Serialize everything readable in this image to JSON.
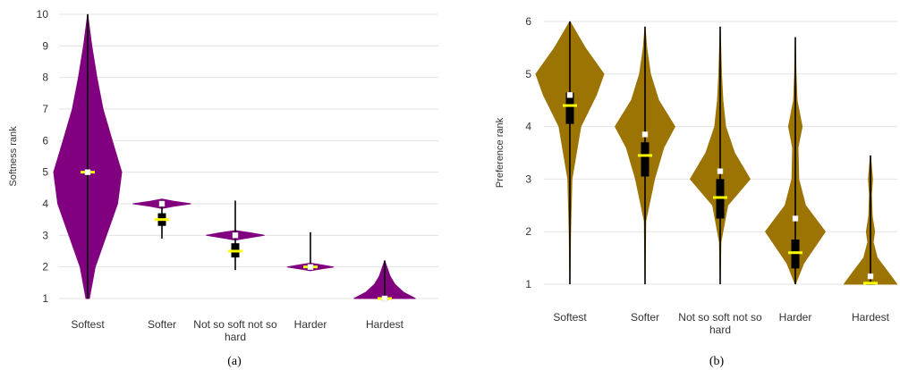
{
  "chart_data": [
    {
      "type": "violin",
      "panel_label": "(a)",
      "ylabel": "Softness rank",
      "ylim": [
        1,
        10
      ],
      "yticks": [
        "1",
        "2",
        "3",
        "4",
        "5",
        "6",
        "7",
        "8",
        "9",
        "10"
      ],
      "grid": true,
      "categories": [
        {
          "lines": [
            "Softest"
          ]
        },
        {
          "lines": [
            "Softer"
          ]
        },
        {
          "lines": [
            "Not so soft not so",
            "hard"
          ]
        },
        {
          "lines": [
            "Harder"
          ]
        },
        {
          "lines": [
            "Hardest"
          ]
        }
      ],
      "color": "#800080",
      "violins": [
        {
          "min": 1,
          "max": 10,
          "mode": 5,
          "q1": 4.97,
          "q3": 5.03,
          "median": 5,
          "mean": 5,
          "profile": [
            [
              1,
              0.05
            ],
            [
              2,
              0.22
            ],
            [
              3,
              0.55
            ],
            [
              4,
              0.88
            ],
            [
              5,
              1.0
            ],
            [
              6,
              0.72
            ],
            [
              7,
              0.45
            ],
            [
              8,
              0.27
            ],
            [
              9,
              0.12
            ],
            [
              10,
              0.0
            ]
          ]
        },
        {
          "min": 2.9,
          "max": 4.1,
          "mode": 4,
          "q1": 3.3,
          "q3": 3.7,
          "median": 3.5,
          "mean": 4.0,
          "profile": [
            [
              3.85,
              0.0
            ],
            [
              3.92,
              0.35
            ],
            [
              4.0,
              0.85
            ],
            [
              4.08,
              0.35
            ],
            [
              4.15,
              0.0
            ]
          ]
        },
        {
          "min": 1.9,
          "max": 4.1,
          "mode": 3,
          "q1": 2.3,
          "q3": 2.75,
          "median": 2.5,
          "mean": 3.0,
          "profile": [
            [
              2.85,
              0.0
            ],
            [
              2.93,
              0.45
            ],
            [
              3.0,
              0.85
            ],
            [
              3.08,
              0.45
            ],
            [
              3.15,
              0.0
            ]
          ]
        },
        {
          "min": 1.9,
          "max": 3.1,
          "mode": 2,
          "q1": 1.97,
          "q3": 2.03,
          "median": 2.0,
          "mean": 2.0,
          "profile": [
            [
              1.88,
              0.0
            ],
            [
              1.95,
              0.4
            ],
            [
              2.0,
              0.68
            ],
            [
              2.05,
              0.4
            ],
            [
              2.12,
              0.0
            ]
          ]
        },
        {
          "min": 1,
          "max": 2.2,
          "mode": 1,
          "q1": 1.0,
          "q3": 1.04,
          "median": 1.0,
          "mean": 1.0,
          "profile": [
            [
              1.0,
              0.9
            ],
            [
              1.2,
              0.55
            ],
            [
              1.45,
              0.3
            ],
            [
              1.7,
              0.16
            ],
            [
              1.95,
              0.08
            ],
            [
              2.2,
              0.0
            ]
          ]
        }
      ]
    },
    {
      "type": "violin",
      "panel_label": "(b)",
      "ylabel": "Preference rank",
      "ylim": [
        1,
        6
      ],
      "yticks": [
        "1",
        "2",
        "3",
        "4",
        "5",
        "6"
      ],
      "grid": true,
      "categories": [
        {
          "lines": [
            "Softest"
          ]
        },
        {
          "lines": [
            "Softer"
          ]
        },
        {
          "lines": [
            "Not so soft not so",
            "hard"
          ]
        },
        {
          "lines": [
            "Harder"
          ]
        },
        {
          "lines": [
            "Hardest"
          ]
        }
      ],
      "color": "#9c7404",
      "violins": [
        {
          "min": 1,
          "max": 6,
          "mode": 5,
          "q1": 4.05,
          "q3": 4.65,
          "median": 4.4,
          "mean": 4.6,
          "profile": [
            [
              1,
              0.0
            ],
            [
              2,
              0.02
            ],
            [
              3,
              0.06
            ],
            [
              4,
              0.32
            ],
            [
              4.6,
              0.78
            ],
            [
              5,
              1.0
            ],
            [
              5.5,
              0.45
            ],
            [
              6,
              0.0
            ]
          ]
        },
        {
          "min": 1,
          "max": 5.9,
          "mode": 4,
          "q1": 3.05,
          "q3": 3.7,
          "median": 3.45,
          "mean": 3.85,
          "profile": [
            [
              1,
              0.0
            ],
            [
              2.2,
              0.02
            ],
            [
              3,
              0.28
            ],
            [
              3.6,
              0.55
            ],
            [
              4,
              0.88
            ],
            [
              4.5,
              0.4
            ],
            [
              5,
              0.16
            ],
            [
              5.5,
              0.05
            ],
            [
              5.9,
              0.0
            ]
          ]
        },
        {
          "min": 1,
          "max": 5.9,
          "mode": 3,
          "q1": 2.25,
          "q3": 3.0,
          "median": 2.65,
          "mean": 3.15,
          "profile": [
            [
              1,
              0.0
            ],
            [
              1.8,
              0.02
            ],
            [
              2.5,
              0.22
            ],
            [
              3,
              0.88
            ],
            [
              3.5,
              0.42
            ],
            [
              4,
              0.16
            ],
            [
              4.5,
              0.08
            ],
            [
              5,
              0.04
            ],
            [
              5.9,
              0.0
            ]
          ]
        },
        {
          "min": 1,
          "max": 5.7,
          "mode": 2,
          "q1": 1.3,
          "q3": 1.85,
          "median": 1.6,
          "mean": 2.25,
          "profile": [
            [
              1,
              0.0
            ],
            [
              1.4,
              0.25
            ],
            [
              2,
              0.88
            ],
            [
              2.5,
              0.3
            ],
            [
              3,
              0.1
            ],
            [
              3.6,
              0.08
            ],
            [
              4,
              0.2
            ],
            [
              4.5,
              0.05
            ],
            [
              5,
              0.02
            ],
            [
              5.7,
              0.0
            ]
          ]
        },
        {
          "min": 1,
          "max": 3.45,
          "mode": 1,
          "q1": 1.0,
          "q3": 1.04,
          "median": 1.02,
          "mean": 1.15,
          "profile": [
            [
              1,
              0.78
            ],
            [
              1.2,
              0.55
            ],
            [
              1.5,
              0.2
            ],
            [
              1.8,
              0.08
            ],
            [
              2,
              0.12
            ],
            [
              2.3,
              0.05
            ],
            [
              2.7,
              0.03
            ],
            [
              3,
              0.06
            ],
            [
              3.45,
              0.0
            ]
          ]
        }
      ]
    }
  ]
}
